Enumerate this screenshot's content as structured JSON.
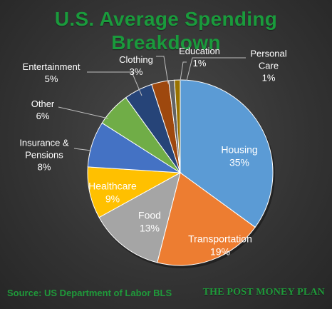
{
  "chart_data": {
    "type": "pie",
    "title": "U.S. Average Spending Breakdown",
    "title_lines": [
      "U.S. Average Spending",
      "Breakdown"
    ],
    "categories": [
      "Housing",
      "Transportation",
      "Food",
      "Healthcare",
      "Insurance & Pensions",
      "Other",
      "Entertainment",
      "Clothing",
      "Education",
      "Personal Care"
    ],
    "values": [
      35,
      19,
      13,
      9,
      8,
      6,
      5,
      3,
      1,
      1
    ],
    "value_labels": [
      "35%",
      "19%",
      "13%",
      "9%",
      "8%",
      "6%",
      "5%",
      "3%",
      "1%",
      "1%"
    ],
    "label_lines": [
      [
        "Housing"
      ],
      [
        "Transportation"
      ],
      [
        "Food"
      ],
      [
        "Healthcare"
      ],
      [
        "Insurance &",
        "Pensions"
      ],
      [
        "Other"
      ],
      [
        "Entertainment"
      ],
      [
        "Clothing"
      ],
      [
        "Education"
      ],
      [
        "Personal",
        "Care"
      ]
    ],
    "colors": [
      "#5b9bd5",
      "#ed7d31",
      "#a5a5a5",
      "#ffc000",
      "#4472c4",
      "#70ad47",
      "#264478",
      "#9e480e",
      "#636363",
      "#997300"
    ]
  },
  "footer": {
    "source": "Source: US Department of Labor BLS",
    "brand": "THE POST MONEY PLAN"
  }
}
